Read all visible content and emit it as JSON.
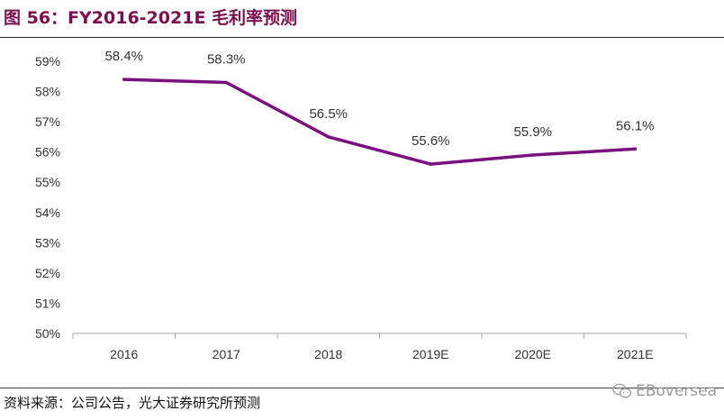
{
  "title": "图 56：FY2016-2021E 毛利率预测",
  "source": "资料来源：公司公告，光大证券研究所预测",
  "watermark": "EBoversea",
  "chart_data": {
    "type": "line",
    "title": "",
    "xlabel": "",
    "ylabel": "",
    "categories": [
      "2016",
      "2017",
      "2018",
      "2019E",
      "2020E",
      "2021E"
    ],
    "series": [
      {
        "values": [
          58.4,
          58.3,
          56.5,
          55.6,
          55.9,
          56.1
        ],
        "labels": [
          "58.4%",
          "58.3%",
          "56.5%",
          "55.6%",
          "55.9%",
          "56.1%"
        ],
        "color": "#7b0f7f"
      }
    ],
    "ylim": [
      50,
      59
    ],
    "yticks": [
      50,
      51,
      52,
      53,
      54,
      55,
      56,
      57,
      58,
      59
    ],
    "ytick_labels": [
      "50%",
      "51%",
      "52%",
      "53%",
      "54%",
      "55%",
      "56%",
      "57%",
      "58%",
      "59%"
    ],
    "grid": false,
    "legend": "none"
  }
}
